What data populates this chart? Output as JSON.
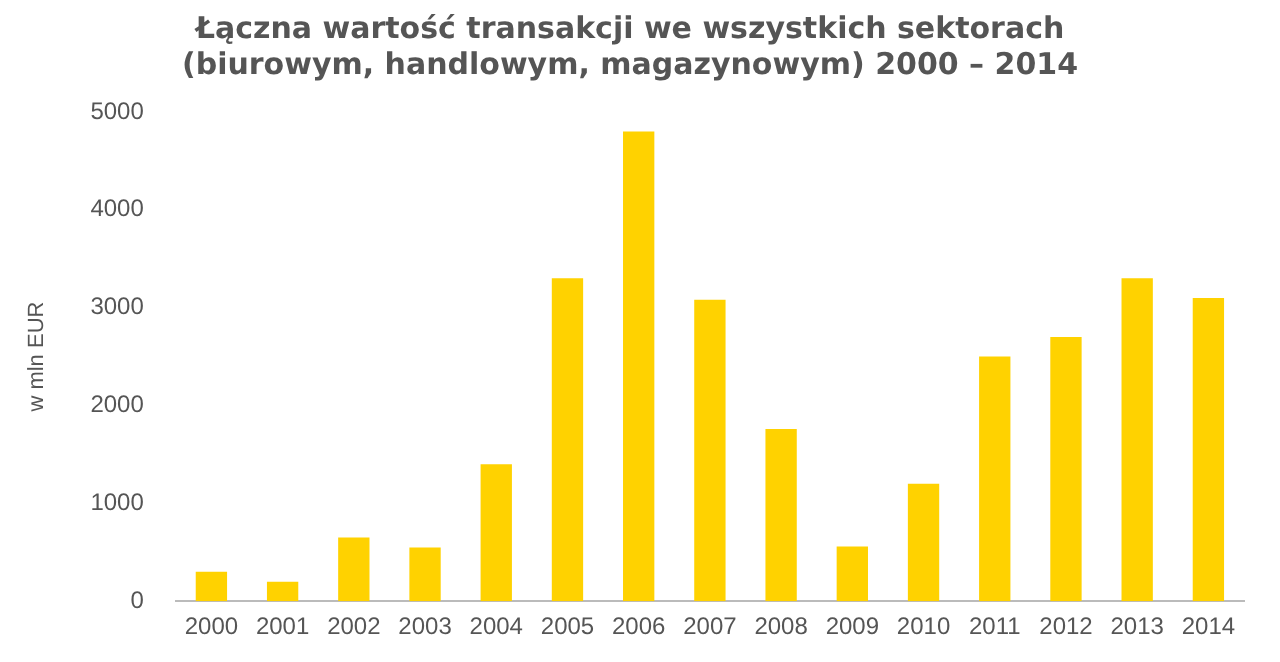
{
  "chart_data": {
    "type": "bar",
    "title": [
      "Łączna wartość transakcji we wszystkich sektorach",
      "(biurowym, handlowym, magazynowym) 2000 – 2014"
    ],
    "ylabel": "w mln EUR",
    "categories": [
      "2000",
      "2001",
      "2002",
      "2003",
      "2004",
      "2005",
      "2006",
      "2007",
      "2008",
      "2009",
      "2010",
      "2011",
      "2012",
      "2013",
      "2014"
    ],
    "values": [
      300,
      200,
      650,
      550,
      1400,
      3300,
      4800,
      3080,
      1760,
      560,
      1200,
      2500,
      2700,
      3300,
      3100
    ],
    "color": "#ffd200",
    "ylim": [
      0,
      5000
    ],
    "yticks": [
      0,
      1000,
      2000,
      3000,
      4000,
      5000
    ],
    "grid": false,
    "legend": false
  }
}
